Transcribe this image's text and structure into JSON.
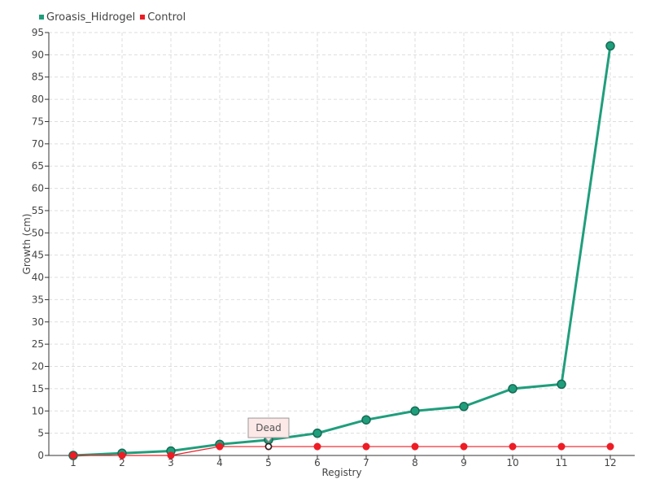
{
  "chart_data": {
    "type": "line",
    "xlabel": "Registry",
    "ylabel": "Growth (cm)",
    "categories": [
      "1",
      "2",
      "3",
      "4",
      "5",
      "6",
      "7",
      "8",
      "9",
      "10",
      "11",
      "12"
    ],
    "ylim": [
      0,
      95
    ],
    "yticks": [
      0,
      5,
      10,
      15,
      20,
      25,
      30,
      35,
      40,
      45,
      50,
      55,
      60,
      65,
      70,
      75,
      80,
      85,
      90,
      95
    ],
    "grid": true,
    "legend_position": "top-left",
    "series": [
      {
        "name": "Groasis_Hidrogel",
        "color": "#1f9e7c",
        "values": [
          0,
          0.5,
          1,
          2.5,
          3.5,
          5,
          8,
          10,
          11,
          15,
          16,
          92
        ]
      },
      {
        "name": "Control",
        "color": "#ee1c25",
        "values": [
          0,
          0,
          0,
          2,
          2,
          2,
          2,
          2,
          2,
          2,
          2,
          2
        ]
      }
    ],
    "annotations": [
      {
        "series": "Control",
        "category": "5",
        "text": "Dead"
      }
    ]
  }
}
